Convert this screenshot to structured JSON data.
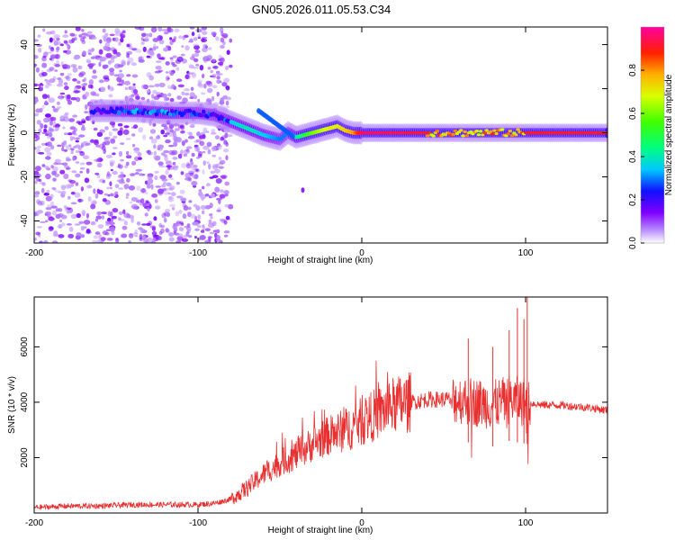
{
  "title": "GN05.2026.011.05.53.C34",
  "chart_data": [
    {
      "type": "heatmap",
      "name": "spectrogram",
      "xlabel": "Height of straight line (km)",
      "ylabel": "Frequency (Hz)",
      "xlim": [
        -200,
        150
      ],
      "ylim": [
        -50,
        48
      ],
      "xticks": [
        -200,
        -100,
        0,
        100
      ],
      "yticks": [
        -40,
        -20,
        0,
        20,
        40
      ],
      "colorbar": {
        "label": "Normalized spectral amplitude",
        "range": [
          0,
          1
        ],
        "ticks": [
          0.0,
          0.2,
          0.4,
          0.6,
          0.8
        ],
        "tick_labels": [
          "0.0",
          "0.2",
          "0.4",
          "0.6",
          "0.8"
        ]
      },
      "ridge": {
        "description": "Central frequency ridge vs. height",
        "x": [
          -160,
          -140,
          -120,
          -100,
          -90,
          -80,
          -70,
          -60,
          -50,
          -45,
          -40,
          -30,
          -20,
          -15,
          -10,
          -5,
          0,
          50,
          100,
          150
        ],
        "frequency": [
          10,
          10,
          9,
          9,
          8,
          5,
          2,
          -1,
          -3,
          0,
          -2,
          0,
          2,
          3,
          1,
          0,
          0,
          0,
          0,
          0
        ],
        "amplitude": [
          0.25,
          0.35,
          0.35,
          0.3,
          0.3,
          0.35,
          0.4,
          0.35,
          0.3,
          0.3,
          0.4,
          0.6,
          0.7,
          0.7,
          0.75,
          0.8,
          0.95,
          0.9,
          0.9,
          0.9
        ]
      },
      "noise_region_x": [
        -200,
        -83
      ]
    },
    {
      "type": "line",
      "name": "snr",
      "xlabel": "Height of straight line (km)",
      "ylabel": "SNR (10 * v/v)",
      "xlim": [
        -200,
        150
      ],
      "ylim": [
        0,
        7800
      ],
      "xticks": [
        -200,
        -100,
        0,
        100
      ],
      "yticks": [
        2000,
        4000,
        6000
      ],
      "series": [
        {
          "name": "SNR",
          "color": "#e83030",
          "x": [
            -200,
            -180,
            -160,
            -140,
            -120,
            -100,
            -90,
            -80,
            -70,
            -60,
            -50,
            -40,
            -30,
            -20,
            -10,
            0,
            10,
            20,
            30,
            40,
            50,
            60,
            70,
            80,
            90,
            100,
            110,
            120,
            130,
            140,
            150
          ],
          "y": [
            200,
            250,
            250,
            300,
            300,
            300,
            350,
            500,
            900,
            1400,
            1800,
            2100,
            2500,
            2800,
            3000,
            3300,
            3600,
            3900,
            4000,
            4100,
            4100,
            4100,
            4000,
            3900,
            4100,
            4000,
            3900,
            3900,
            3850,
            3800,
            3700
          ]
        }
      ],
      "spikes": [
        {
          "x": 65,
          "y": 6300
        },
        {
          "x": 80,
          "y": 6000
        },
        {
          "x": 90,
          "y": 6600
        },
        {
          "x": 95,
          "y": 7400
        },
        {
          "x": 99,
          "y": 7000
        },
        {
          "x": 101,
          "y": 7900
        }
      ]
    }
  ],
  "colors": {
    "line": "#e83030",
    "axis": "#000000",
    "background": "#ffffff"
  }
}
